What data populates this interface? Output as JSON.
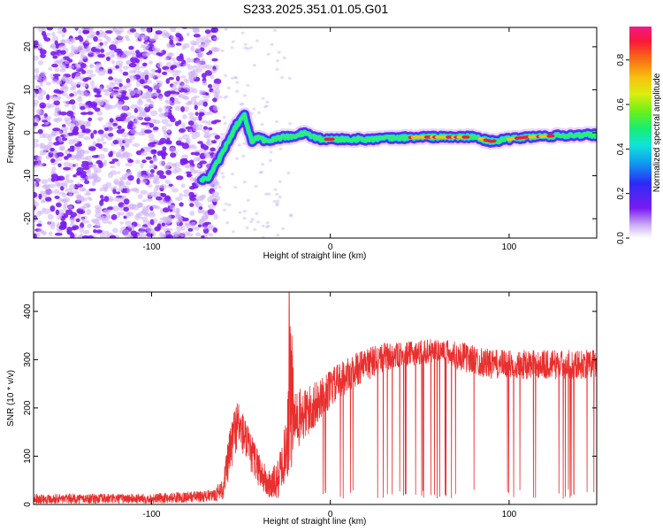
{
  "title": "S233.2025.351.01.05.G01",
  "colors": {
    "speckle_dark": "#7a1cf0",
    "speckle_light": "#cdb0f4",
    "snr_line": "#e8302e",
    "axis": "#000000"
  },
  "chart_data": [
    {
      "type": "heatmap",
      "title": "S233.2025.351.01.05.G01",
      "xlabel": "Height of straight line (km)",
      "ylabel": "Frequency (Hz)",
      "xlim": [
        -166,
        149
      ],
      "ylim": [
        -24.5,
        24.5
      ],
      "xticks": [
        -100,
        0,
        100
      ],
      "yticks": [
        -20,
        -10,
        0,
        10,
        20
      ],
      "colorbar": {
        "label": "Normalized spectral amplitude",
        "range": [
          0,
          0.95
        ],
        "ticks": [
          0,
          0.2,
          0.4,
          0.6,
          0.8
        ],
        "colormap": "rainbow"
      },
      "noise_region_x": [
        -166,
        -65
      ],
      "signal_track": {
        "x": [
          -72,
          -68,
          -62,
          -57,
          -52,
          -48,
          -44,
          -40,
          -36,
          -32,
          -26,
          -20,
          -15,
          -10,
          -5,
          0,
          20,
          50,
          80,
          90,
          110,
          140,
          149
        ],
        "freq": [
          -11,
          -10.5,
          -6,
          -2,
          2,
          4,
          -2,
          -1,
          -2,
          -1.5,
          -1,
          -1,
          0,
          -1,
          -1.5,
          -1.5,
          -1.5,
          -1,
          -1,
          -2,
          -1,
          -0.5,
          -0.5
        ]
      },
      "signal_peak_regions_x": [
        [
          -2,
          2
        ],
        [
          45,
          78
        ],
        [
          84,
          92
        ],
        [
          100,
          125
        ]
      ],
      "grid": false,
      "legend": "none"
    },
    {
      "type": "line",
      "xlabel": "Height of straight line (km)",
      "ylabel": "SNR (10 * v/v)",
      "xlim": [
        -166,
        149
      ],
      "ylim": [
        0,
        440
      ],
      "xticks": [
        -100,
        0,
        100
      ],
      "yticks": [
        0,
        100,
        200,
        300,
        400
      ],
      "series": [
        {
          "color": "#e8302e",
          "envelope_x": [
            -166,
            -100,
            -65,
            -60,
            -55,
            -52,
            -48,
            -45,
            -42,
            -38,
            -35,
            -30,
            -25,
            -22,
            -20,
            -15,
            -10,
            -5,
            0,
            10,
            20,
            30,
            40,
            50,
            60,
            70,
            80,
            90,
            100,
            110,
            120,
            130,
            140,
            149
          ],
          "envelope_base": [
            12,
            12,
            18,
            35,
            130,
            170,
            140,
            110,
            90,
            60,
            40,
            45,
            110,
            230,
            170,
            185,
            200,
            220,
            240,
            270,
            290,
            305,
            310,
            315,
            320,
            310,
            300,
            290,
            290,
            290,
            290,
            290,
            290,
            290
          ],
          "envelope_amp": [
            10,
            10,
            12,
            25,
            60,
            50,
            45,
            40,
            40,
            35,
            30,
            40,
            60,
            180,
            60,
            60,
            50,
            40,
            40,
            35,
            35,
            30,
            25,
            25,
            25,
            30,
            30,
            30,
            30,
            30,
            30,
            30,
            30,
            30
          ],
          "dropout_region_x": [
            -5,
            149
          ],
          "dropout_min": 12,
          "peak_x": -23,
          "peak_y": 440
        }
      ],
      "grid": false,
      "legend": "none"
    }
  ]
}
